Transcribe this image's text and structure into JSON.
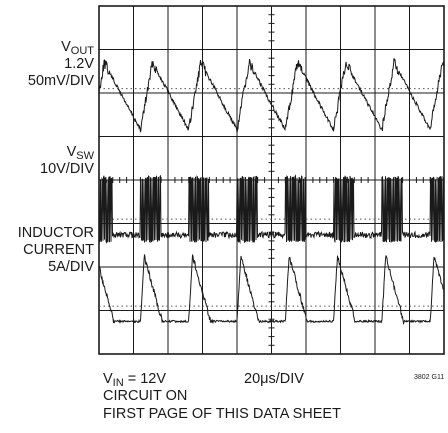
{
  "chart_data": {
    "type": "line",
    "grid": true,
    "grid_divisions": {
      "x": 10,
      "y": 8
    },
    "time_scale": {
      "per_div": "20μs/DIV",
      "period_us": 28
    },
    "traces": [
      {
        "label_main": "V",
        "label_sub": "OUT",
        "label_line2": "1.2V",
        "scale": "50mV/DIV",
        "kind": "sawtooth-ripple",
        "peak_to_peak_mV": 40
      },
      {
        "label_main": "V",
        "label_sub": "SW",
        "label_line2": "",
        "scale": "10V/DIV",
        "kind": "switching-bursts",
        "high_V": 12,
        "low_V": 0
      },
      {
        "label_main": "INDUCTOR",
        "label_sub": "",
        "label_line2": "CURRENT",
        "scale": "5A/DIV",
        "kind": "triangular-pulses",
        "peak_A": 7.5
      }
    ],
    "conditions": {
      "vin_main": "V",
      "vin_sub": "IN",
      "vin_value": " = 12V",
      "timebase": "20μs/DIV",
      "line2": "CIRCUIT ON",
      "line3": "FIRST PAGE OF THIS DATA SHEET"
    },
    "figure_id": "3802 G11"
  }
}
